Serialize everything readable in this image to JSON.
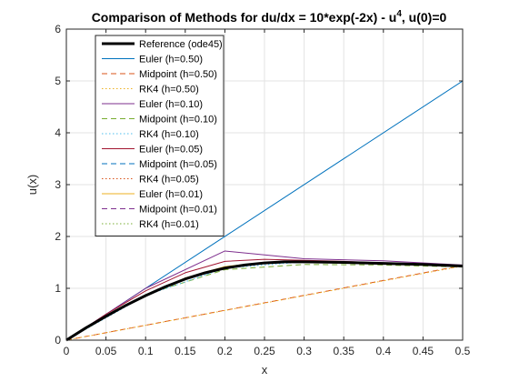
{
  "chart_data": {
    "type": "line",
    "title": {
      "main": "Comparison of Methods for du/dx = 10*exp(-2x) - u",
      "superscript": "4",
      "tail": ", u(0)=0"
    },
    "xlabel": "x",
    "ylabel": "u(x)",
    "xlim": [
      0,
      0.5
    ],
    "ylim": [
      0,
      6
    ],
    "x_ticks": [
      "0",
      "0.05",
      "0.1",
      "0.15",
      "0.2",
      "0.25",
      "0.3",
      "0.35",
      "0.4",
      "0.45",
      "0.5"
    ],
    "y_ticks": [
      "0",
      "1",
      "2",
      "3",
      "4",
      "5",
      "6"
    ],
    "grid": true,
    "legend_position": "top-left",
    "series": [
      {
        "name": "Reference (ode45)",
        "color": "#000000",
        "dash": "solid",
        "width": 3,
        "x": [
          0,
          0.025,
          0.05,
          0.075,
          0.1,
          0.125,
          0.15,
          0.175,
          0.2,
          0.225,
          0.25,
          0.275,
          0.3,
          0.35,
          0.4,
          0.45,
          0.5
        ],
        "y": [
          0,
          0.24,
          0.46,
          0.67,
          0.86,
          1.03,
          1.18,
          1.3,
          1.39,
          1.45,
          1.49,
          1.51,
          1.51,
          1.5,
          1.48,
          1.46,
          1.43
        ]
      },
      {
        "name": "Euler (h=0.50)",
        "color": "#0072BD",
        "dash": "solid",
        "width": 1,
        "x": [
          0,
          0.5
        ],
        "y": [
          0,
          5
        ]
      },
      {
        "name": "Midpoint (h=0.50)",
        "color": "#D95319",
        "dash": "dashed",
        "width": 1,
        "x": [
          0,
          0.5
        ],
        "y": [
          0,
          1.44
        ]
      },
      {
        "name": "RK4 (h=0.50)",
        "color": "#EDB120",
        "dash": "dotted",
        "width": 1,
        "x": [
          0,
          0.5
        ],
        "y": [
          0,
          1.43
        ]
      },
      {
        "name": "Euler (h=0.10)",
        "color": "#7E2F8E",
        "dash": "solid",
        "width": 1,
        "x": [
          0,
          0.1,
          0.2,
          0.3,
          0.4,
          0.5
        ],
        "y": [
          0,
          1.0,
          1.72,
          1.57,
          1.53,
          1.45
        ]
      },
      {
        "name": "Midpoint (h=0.10)",
        "color": "#77AC30",
        "dash": "dashed",
        "width": 1,
        "x": [
          0,
          0.1,
          0.2,
          0.3,
          0.4,
          0.5
        ],
        "y": [
          0,
          0.88,
          1.36,
          1.46,
          1.45,
          1.41
        ]
      },
      {
        "name": "RK4 (h=0.10)",
        "color": "#4DBEEE",
        "dash": "dotted",
        "width": 1,
        "x": [
          0,
          0.1,
          0.2,
          0.3,
          0.4,
          0.5
        ],
        "y": [
          0,
          0.86,
          1.39,
          1.51,
          1.48,
          1.43
        ]
      },
      {
        "name": "Euler (h=0.05)",
        "color": "#A2142F",
        "dash": "solid",
        "width": 1,
        "x": [
          0,
          0.05,
          0.1,
          0.15,
          0.2,
          0.25,
          0.3,
          0.35,
          0.4,
          0.45,
          0.5
        ],
        "y": [
          0,
          0.5,
          0.95,
          1.3,
          1.52,
          1.56,
          1.54,
          1.52,
          1.49,
          1.46,
          1.44
        ]
      },
      {
        "name": "Midpoint (h=0.05)",
        "color": "#0072BD",
        "dash": "dashed",
        "width": 1,
        "x": [
          0,
          0.05,
          0.1,
          0.15,
          0.2,
          0.25,
          0.3,
          0.35,
          0.4,
          0.45,
          0.5
        ],
        "y": [
          0,
          0.47,
          0.86,
          1.17,
          1.38,
          1.48,
          1.5,
          1.5,
          1.48,
          1.45,
          1.43
        ]
      },
      {
        "name": "RK4 (h=0.05)",
        "color": "#D95319",
        "dash": "dotted",
        "width": 1,
        "x": [
          0,
          0.05,
          0.1,
          0.15,
          0.2,
          0.25,
          0.3,
          0.35,
          0.4,
          0.45,
          0.5
        ],
        "y": [
          0,
          0.46,
          0.86,
          1.18,
          1.39,
          1.49,
          1.51,
          1.5,
          1.48,
          1.46,
          1.43
        ]
      },
      {
        "name": "Euler (h=0.01)",
        "color": "#EDB120",
        "dash": "solid",
        "width": 1,
        "x": [
          0,
          0.05,
          0.1,
          0.15,
          0.2,
          0.25,
          0.3,
          0.35,
          0.4,
          0.45,
          0.5
        ],
        "y": [
          0,
          0.47,
          0.87,
          1.2,
          1.42,
          1.5,
          1.52,
          1.51,
          1.49,
          1.46,
          1.43
        ]
      },
      {
        "name": "Midpoint (h=0.01)",
        "color": "#7E2F8E",
        "dash": "dashed",
        "width": 1,
        "x": [
          0,
          0.05,
          0.1,
          0.15,
          0.2,
          0.25,
          0.3,
          0.35,
          0.4,
          0.45,
          0.5
        ],
        "y": [
          0,
          0.46,
          0.86,
          1.18,
          1.39,
          1.49,
          1.51,
          1.5,
          1.48,
          1.46,
          1.43
        ]
      },
      {
        "name": "RK4 (h=0.01)",
        "color": "#77AC30",
        "dash": "dotted",
        "width": 1,
        "x": [
          0,
          0.05,
          0.1,
          0.15,
          0.2,
          0.25,
          0.3,
          0.35,
          0.4,
          0.45,
          0.5
        ],
        "y": [
          0,
          0.46,
          0.86,
          1.18,
          1.39,
          1.49,
          1.51,
          1.5,
          1.48,
          1.46,
          1.43
        ]
      }
    ]
  }
}
